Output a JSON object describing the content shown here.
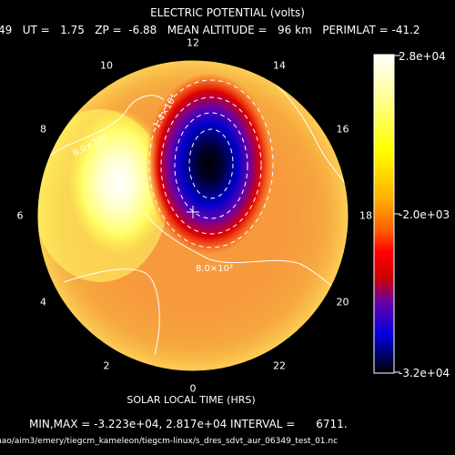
{
  "title": "ELECTRIC POTENTIAL (volts)",
  "subtitle": "49   UT =   1.75   ZP =  -6.88   MEAN ALTITUDE =   96 km   PERIMLAT = -41.2",
  "xlabel": "SOLAR LOCAL TIME (HRS)",
  "minmax_line": "MIN,MAX = -3.223e+04, 2.817e+04 INTERVAL =      6711.",
  "file_path": "hao/aim3/emery/tiegcm_kameleon/tiegcm-linux/s_dres_sdvt_aur_06349_test_01.nc",
  "hour_labels": [
    {
      "hour": "12",
      "angle_deg": 0
    },
    {
      "hour": "14",
      "angle_deg": 30
    },
    {
      "hour": "16",
      "angle_deg": 60
    },
    {
      "hour": "18",
      "angle_deg": 90
    },
    {
      "hour": "20",
      "angle_deg": 120
    },
    {
      "hour": "22",
      "angle_deg": 150
    },
    {
      "hour": "0",
      "angle_deg": 180
    },
    {
      "hour": "2",
      "angle_deg": 210
    },
    {
      "hour": "4",
      "angle_deg": 240
    },
    {
      "hour": "6",
      "angle_deg": 270
    },
    {
      "hour": "8",
      "angle_deg": 300
    },
    {
      "hour": "10",
      "angle_deg": 330
    }
  ],
  "contour_labels": {
    "left": "8.0×10³",
    "bottom": "8.0×10³",
    "top": "-1.4×10⁴"
  },
  "colorbar": {
    "max_label": "2.8e+04",
    "mid_label": "-2.0e+03",
    "min_label": "-3.2e+04",
    "colors": [
      "#ffffff",
      "#ffff44",
      "#ff9900",
      "#ff2200",
      "#cc0000",
      "#5500aa",
      "#0000cc",
      "#000000"
    ]
  },
  "colors": {
    "background": "#000000",
    "base_field": "#f79a3e",
    "positive_cell": "#ffff80",
    "negative_cell": "#0000cc",
    "text": "#ffffff"
  }
}
